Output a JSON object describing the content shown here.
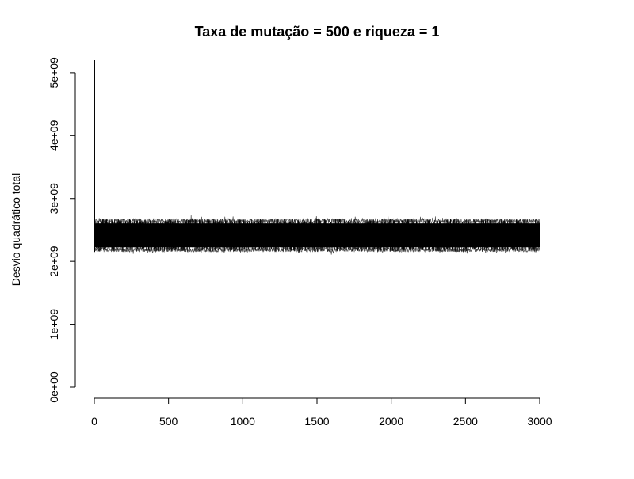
{
  "chart_data": {
    "type": "line",
    "title": "Taxa de mutação = 500 e riqueza = 1",
    "xlabel": "",
    "ylabel": "Desvio quadrático total",
    "xlim": [
      0,
      3000
    ],
    "ylim": [
      0,
      5200000000
    ],
    "x_ticks": [
      0,
      500,
      1000,
      1500,
      2000,
      2500,
      3000
    ],
    "x_tick_labels": [
      "0",
      "500",
      "1000",
      "1500",
      "2000",
      "2500",
      "3000"
    ],
    "y_ticks": [
      0,
      1000000000,
      2000000000,
      3000000000,
      4000000000,
      5000000000
    ],
    "y_tick_labels": [
      "0e+00",
      "1e+09",
      "2e+09",
      "3e+09",
      "4e+09",
      "5e+09"
    ],
    "grid": false,
    "series": [
      {
        "color": "#000000",
        "description_points": {
          "initial_peak": {
            "x": 1,
            "y": 5200000000
          },
          "steady_mean": 2400000000,
          "steady_band": [
            2150000000,
            2680000000
          ],
          "steady_extremes": [
            2100000000,
            2750000000
          ],
          "x_range": [
            1,
            3000
          ]
        }
      }
    ]
  }
}
